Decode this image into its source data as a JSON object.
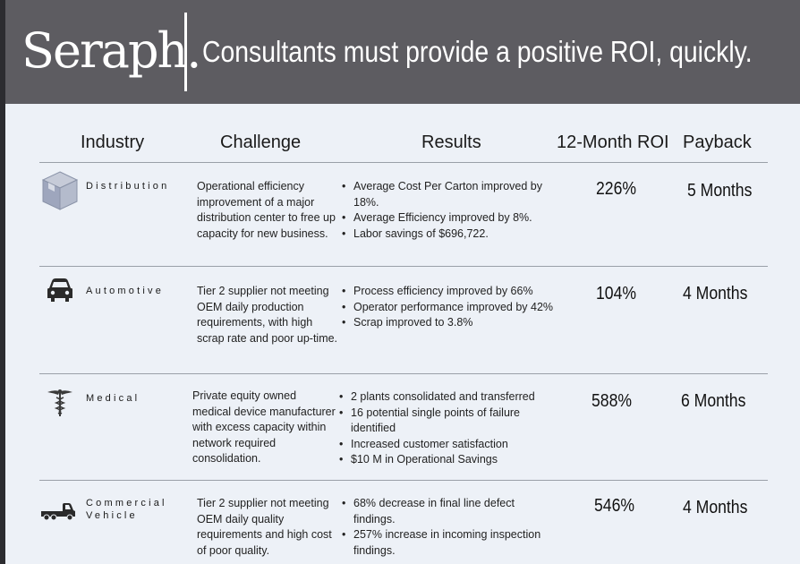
{
  "header": {
    "logo": "Seraph.",
    "headline": "Consultants must provide a positive ROI, quickly."
  },
  "columns": {
    "industry": "Industry",
    "challenge": "Challenge",
    "results": "Results",
    "roi": "12-Month ROI",
    "payback": "Payback"
  },
  "rows": [
    {
      "icon": "box-icon",
      "industry": "Distribution",
      "challenge": "Operational efficiency improvement of a major distribution center to free up capacity for new business.",
      "results": [
        "Average Cost Per Carton improved by 18%.",
        "Average Efficiency improved by 8%.",
        "Labor savings of $696,722."
      ],
      "roi": "226%",
      "payback": "5 Months"
    },
    {
      "icon": "car-icon",
      "industry": "Automotive",
      "challenge": "Tier 2 supplier not meeting OEM daily production requirements, with high scrap rate and poor up-time.",
      "results": [
        "Process efficiency improved by 66%",
        "Operator performance improved by 42%",
        "Scrap improved to 3.8%"
      ],
      "roi": "104%",
      "payback": "4 Months"
    },
    {
      "icon": "caduceus-icon",
      "industry": "Medical",
      "challenge": "Private equity owned medical device manufacturer with excess capacity within network required consolidation.",
      "results": [
        "2 plants consolidated and transferred",
        "16 potential single points of failure identified",
        "Increased customer satisfaction",
        "$10 M in Operational Savings"
      ],
      "roi": "588%",
      "payback": "6 Months"
    },
    {
      "icon": "truck-icon",
      "industry_line1": "Commercial",
      "industry_line2": "Vehicle",
      "challenge": "Tier 2 supplier not meeting OEM daily quality requirements and high cost of poor quality.",
      "results": [
        "68% decrease in final line defect findings.",
        "257% increase in incoming inspection findings."
      ],
      "roi": "546%",
      "payback": "4 Months"
    }
  ]
}
